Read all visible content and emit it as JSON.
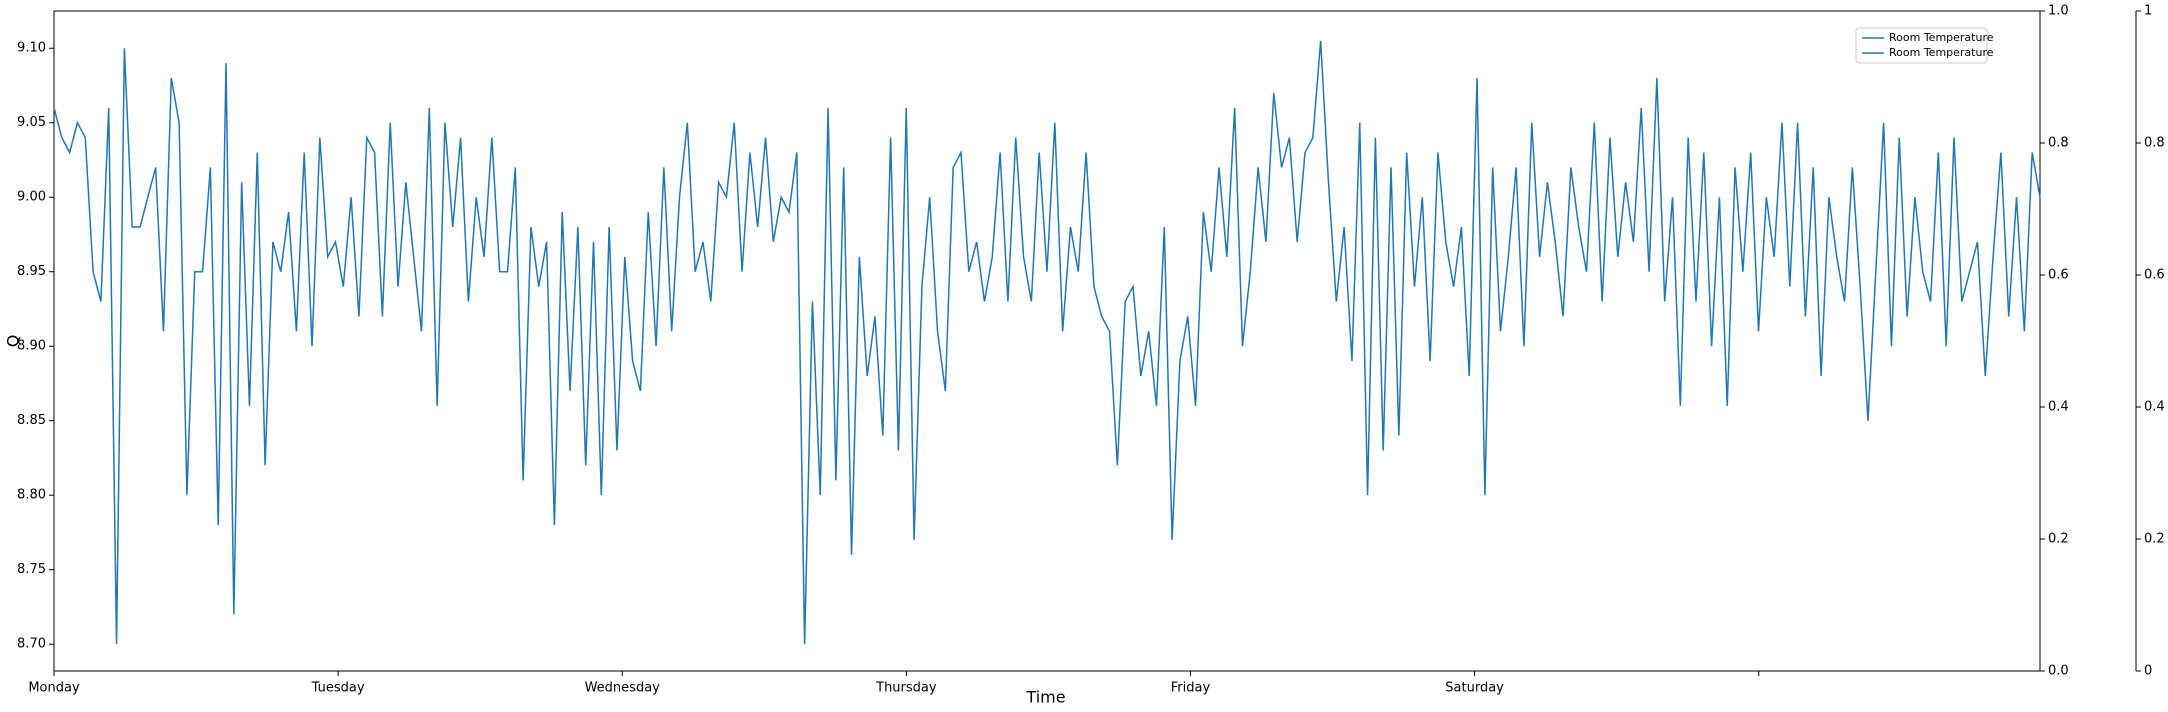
{
  "chart_data": {
    "type": "line",
    "xlabel": "Time",
    "ylabel": "Q",
    "xlim": [
      0,
      6.99
    ],
    "xticks": [
      {
        "value": 0,
        "label": "Monday"
      },
      {
        "value": 1,
        "label": "Tuesday"
      },
      {
        "value": 2,
        "label": "Wednesday"
      },
      {
        "value": 3,
        "label": "Thursday"
      },
      {
        "value": 4,
        "label": "Friday"
      },
      {
        "value": 5,
        "label": "Saturday"
      },
      {
        "value": 6,
        "label": null
      }
    ],
    "ylim": [
      8.682,
      9.125
    ],
    "yticks": [
      {
        "value": 8.7,
        "label": "8.70"
      },
      {
        "value": 8.75,
        "label": "8.75"
      },
      {
        "value": 8.8,
        "label": "8.80"
      },
      {
        "value": 8.85,
        "label": "8.85"
      },
      {
        "value": 8.9,
        "label": "8.90"
      },
      {
        "value": 8.95,
        "label": "8.95"
      },
      {
        "value": 9.0,
        "label": "9.00"
      },
      {
        "value": 9.05,
        "label": "9.05"
      },
      {
        "value": 9.1,
        "label": "9.10"
      }
    ],
    "y2lim": [
      0,
      1
    ],
    "y2ticks": [
      {
        "value": 0,
        "label": "0.0"
      },
      0.2,
      0.4,
      0.6,
      0.8,
      {
        "value": 1,
        "label": "1.0"
      }
    ],
    "y3lim": [
      0,
      1
    ],
    "y3ticks": [
      0,
      0.2,
      0.4,
      0.6,
      0.8,
      1
    ],
    "legend": "upper right",
    "series": [
      {
        "name": "Room Temperature",
        "color": "#1f77b4",
        "values": [
          9.06,
          9.04,
          9.03,
          9.05,
          9.04,
          8.95,
          8.93,
          9.06,
          8.7,
          9.1,
          8.98,
          8.98,
          9.0,
          9.02,
          8.91,
          9.08,
          9.05,
          8.8,
          8.95,
          8.95,
          9.02,
          8.78,
          9.09,
          8.72,
          9.01,
          8.86,
          9.03,
          8.82,
          8.97,
          8.95,
          8.99,
          8.91,
          9.03,
          8.9,
          9.04,
          8.96,
          8.97,
          8.94,
          9.0,
          8.92,
          9.04,
          9.03,
          8.92,
          9.05,
          8.94,
          9.01,
          8.96,
          8.91,
          9.06,
          8.86,
          9.05,
          8.98,
          9.04,
          8.93,
          9.0,
          8.96,
          9.04,
          8.95,
          8.95,
          9.02,
          8.81,
          8.98,
          8.94,
          8.97,
          8.78,
          8.99,
          8.87,
          8.98,
          8.82,
          8.97,
          8.8,
          8.98,
          8.83,
          8.96,
          8.89,
          8.87,
          8.99,
          8.9,
          9.02,
          8.91,
          9.0,
          9.05,
          8.95,
          8.97,
          8.93,
          9.01,
          9.0,
          9.05,
          8.95,
          9.03,
          8.98,
          9.04,
          8.97,
          9.0,
          8.99,
          9.03,
          8.7,
          8.93,
          8.8,
          9.06,
          8.81,
          9.02,
          8.76,
          8.96,
          8.88,
          8.92,
          8.84,
          9.04,
          8.83,
          9.06,
          8.77,
          8.94,
          9.0,
          8.91,
          8.87,
          9.02,
          9.03,
          8.95,
          8.97,
          8.93,
          8.96,
          9.03,
          8.93,
          9.04,
          8.96,
          8.93,
          9.03,
          8.95,
          9.05,
          8.91,
          8.98,
          8.95,
          9.03,
          8.94,
          8.92,
          8.91,
          8.82,
          8.93,
          8.94,
          8.88,
          8.91,
          8.86,
          8.98,
          8.77,
          8.89,
          8.92,
          8.86,
          8.99,
          8.95,
          9.02,
          8.96,
          9.06,
          8.9,
          8.95,
          9.02,
          8.97,
          9.07,
          9.02,
          9.04,
          8.97,
          9.03,
          9.04,
          9.105,
          9.01,
          8.93,
          8.98,
          8.89,
          9.05,
          8.8,
          9.04,
          8.83,
          9.02,
          8.84,
          9.03,
          8.94,
          9.0,
          8.89,
          9.03,
          8.97,
          8.94,
          8.98,
          8.88,
          9.08,
          8.8,
          9.02,
          8.91,
          8.96,
          9.02,
          8.9,
          9.05,
          8.96,
          9.01,
          8.97,
          8.92,
          9.02,
          8.98,
          8.95,
          9.05,
          8.93,
          9.04,
          8.96,
          9.01,
          8.97,
          9.06,
          8.95,
          9.08,
          8.93,
          9.0,
          8.86,
          9.04,
          8.93,
          9.03,
          8.9,
          9.0,
          8.86,
          9.02,
          8.95,
          9.03,
          8.91,
          9.0,
          8.96,
          9.05,
          8.94,
          9.05,
          8.92,
          9.02,
          8.88,
          9.0,
          8.96,
          8.93,
          9.02,
          8.94,
          8.85,
          8.95,
          9.05,
          8.9,
          9.04,
          8.92,
          9.0,
          8.95,
          8.93,
          9.03,
          8.9,
          9.04,
          8.93,
          8.95,
          8.97,
          8.88,
          8.96,
          9.03,
          8.92,
          9.0,
          8.91,
          9.03,
          9.0
        ]
      },
      {
        "name": "Room Temperature",
        "color": "#1f77b4",
        "axis": "y2",
        "values": []
      }
    ]
  }
}
